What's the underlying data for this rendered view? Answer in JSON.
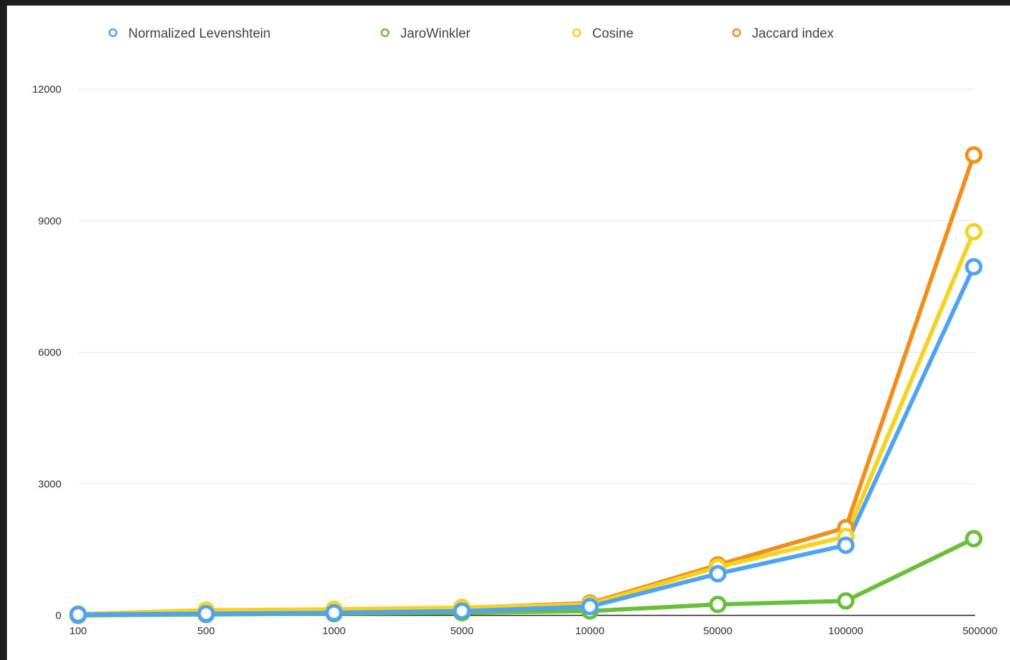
{
  "chart_data": {
    "type": "line",
    "title": "",
    "xlabel": "",
    "ylabel": "",
    "categories": [
      "100",
      "500",
      "1000",
      "5000",
      "10000",
      "50000",
      "100000",
      "500000"
    ],
    "ylim": [
      0,
      12000
    ],
    "yticks": [
      "0",
      "3000",
      "6000",
      "9000",
      "12000"
    ],
    "grid": true,
    "legend_position": "top",
    "series": [
      {
        "name": "Normalized Levenshtein",
        "color": "#4fa3f7",
        "values": [
          20,
          40,
          60,
          100,
          200,
          950,
          1600,
          7950
        ]
      },
      {
        "name": "JaroWinkler",
        "color": "#6abf3a",
        "values": [
          0,
          20,
          40,
          60,
          100,
          250,
          330,
          1750
        ]
      },
      {
        "name": "Cosine",
        "color": "#f7d21f",
        "values": [
          30,
          120,
          140,
          180,
          250,
          1100,
          1800,
          8750
        ]
      },
      {
        "name": "Jaccard index",
        "color": "#ef8f1c",
        "values": [
          30,
          110,
          130,
          170,
          280,
          1150,
          2000,
          10500
        ]
      }
    ]
  }
}
